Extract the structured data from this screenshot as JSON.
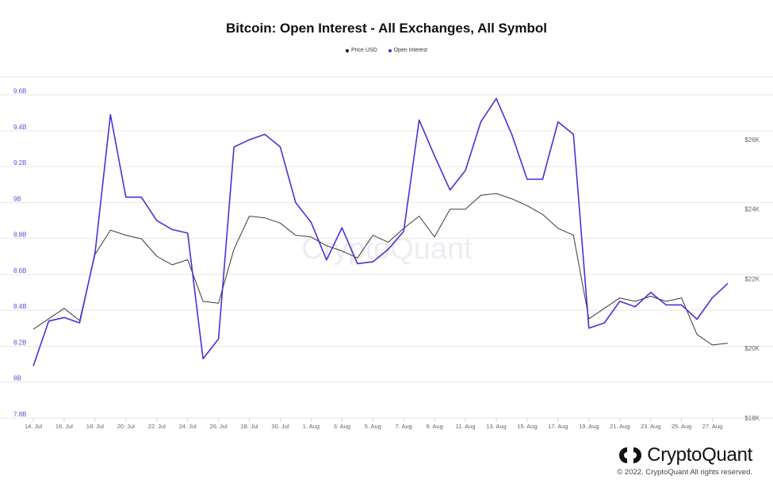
{
  "chart_data": {
    "type": "line",
    "title": "Bitcoin: Open Interest - All Exchanges, All Symbol",
    "legend_position": "top-center",
    "grid": true,
    "watermark": "CryptoQuant",
    "x_axis": {
      "start_date": "2022-07-14",
      "end_date": "2022-08-28",
      "tick_labels": [
        "14. Jul",
        "16. Jul",
        "18. Jul",
        "20. Jul",
        "22. Jul",
        "24. Jul",
        "26. Jul",
        "28. Jul",
        "30. Jul",
        "1. Aug",
        "3. Aug",
        "5. Aug",
        "7. Aug",
        "9. Aug",
        "11. Aug",
        "13. Aug",
        "15. Aug",
        "17. Aug",
        "19. Aug",
        "21. Aug",
        "23. Aug",
        "25. Aug",
        "27. Aug"
      ]
    },
    "y_left": {
      "ylim": [
        7.8,
        9.7
      ],
      "tick_values": [
        7.8,
        8.0,
        8.2,
        8.4,
        8.6,
        8.8,
        9.0,
        9.2,
        9.4,
        9.6
      ],
      "tick_labels": [
        "7.8B",
        "8B",
        "8.2B",
        "8.4B",
        "8.6B",
        "8.8B",
        "9B",
        "9.2B",
        "9.4B",
        "9.6B"
      ]
    },
    "y_right": {
      "ylim": [
        18000,
        27800
      ],
      "tick_values": [
        18000,
        20000,
        22000,
        24000,
        26000
      ],
      "tick_labels": [
        "$18K",
        "$20K",
        "$22K",
        "$24K",
        "$26K"
      ]
    },
    "series": [
      {
        "name": "Price USD",
        "axis": "right",
        "color": "#3a3a3a",
        "dates": [
          "2022-07-14",
          "2022-07-15",
          "2022-07-16",
          "2022-07-17",
          "2022-07-18",
          "2022-07-19",
          "2022-07-20",
          "2022-07-21",
          "2022-07-22",
          "2022-07-23",
          "2022-07-24",
          "2022-07-25",
          "2022-07-26",
          "2022-07-27",
          "2022-07-28",
          "2022-07-29",
          "2022-07-30",
          "2022-07-31",
          "2022-08-01",
          "2022-08-02",
          "2022-08-03",
          "2022-08-04",
          "2022-08-05",
          "2022-08-06",
          "2022-08-07",
          "2022-08-08",
          "2022-08-09",
          "2022-08-10",
          "2022-08-11",
          "2022-08-12",
          "2022-08-13",
          "2022-08-14",
          "2022-08-15",
          "2022-08-16",
          "2022-08-17",
          "2022-08-18",
          "2022-08-19",
          "2022-08-20",
          "2022-08-21",
          "2022-08-22",
          "2022-08-23",
          "2022-08-24",
          "2022-08-25",
          "2022-08-26",
          "2022-08-27",
          "2022-08-28"
        ],
        "values": [
          20550,
          20850,
          21150,
          20800,
          22700,
          23400,
          23250,
          23150,
          22650,
          22400,
          22550,
          21350,
          21300,
          22850,
          23800,
          23750,
          23600,
          23250,
          23200,
          22950,
          22800,
          22600,
          23250,
          23050,
          23450,
          23800,
          23200,
          24000,
          24000,
          24400,
          24450,
          24300,
          24100,
          23850,
          23450,
          23250,
          20850,
          21150,
          21450,
          21350,
          21500,
          21350,
          21450,
          20400,
          20100,
          20150
        ]
      },
      {
        "name": "Open Interest",
        "axis": "left",
        "color": "#4a2fd8",
        "dates": [
          "2022-07-14",
          "2022-07-15",
          "2022-07-16",
          "2022-07-17",
          "2022-07-18",
          "2022-07-19",
          "2022-07-20",
          "2022-07-21",
          "2022-07-22",
          "2022-07-23",
          "2022-07-24",
          "2022-07-25",
          "2022-07-26",
          "2022-07-27",
          "2022-07-28",
          "2022-07-29",
          "2022-07-30",
          "2022-07-31",
          "2022-08-01",
          "2022-08-02",
          "2022-08-03",
          "2022-08-04",
          "2022-08-05",
          "2022-08-06",
          "2022-08-07",
          "2022-08-08",
          "2022-08-09",
          "2022-08-10",
          "2022-08-11",
          "2022-08-12",
          "2022-08-13",
          "2022-08-14",
          "2022-08-15",
          "2022-08-16",
          "2022-08-17",
          "2022-08-18",
          "2022-08-19",
          "2022-08-20",
          "2022-08-21",
          "2022-08-22",
          "2022-08-23",
          "2022-08-24",
          "2022-08-25",
          "2022-08-26",
          "2022-08-27",
          "2022-08-28"
        ],
        "values": [
          8.09,
          8.34,
          8.36,
          8.33,
          8.72,
          9.49,
          9.03,
          9.03,
          8.9,
          8.85,
          8.83,
          8.13,
          8.24,
          9.31,
          9.35,
          9.38,
          9.31,
          9.0,
          8.89,
          8.68,
          8.86,
          8.66,
          8.67,
          8.74,
          8.84,
          9.46,
          9.26,
          9.07,
          9.18,
          9.45,
          9.58,
          9.38,
          9.13,
          9.13,
          9.45,
          9.38,
          8.3,
          8.33,
          8.45,
          8.42,
          8.5,
          8.43,
          8.43,
          8.35,
          8.47,
          8.55
        ]
      }
    ]
  },
  "brand": {
    "name": "CryptoQuant",
    "copyright": "© 2022. CryptoQuant All rights reserved."
  },
  "colors": {
    "grid": "#e6e6e6",
    "left_axis_text": "#5b4bd6",
    "right_axis_text": "#666666",
    "x_axis_text": "#666666",
    "watermark": "#ececf2"
  }
}
